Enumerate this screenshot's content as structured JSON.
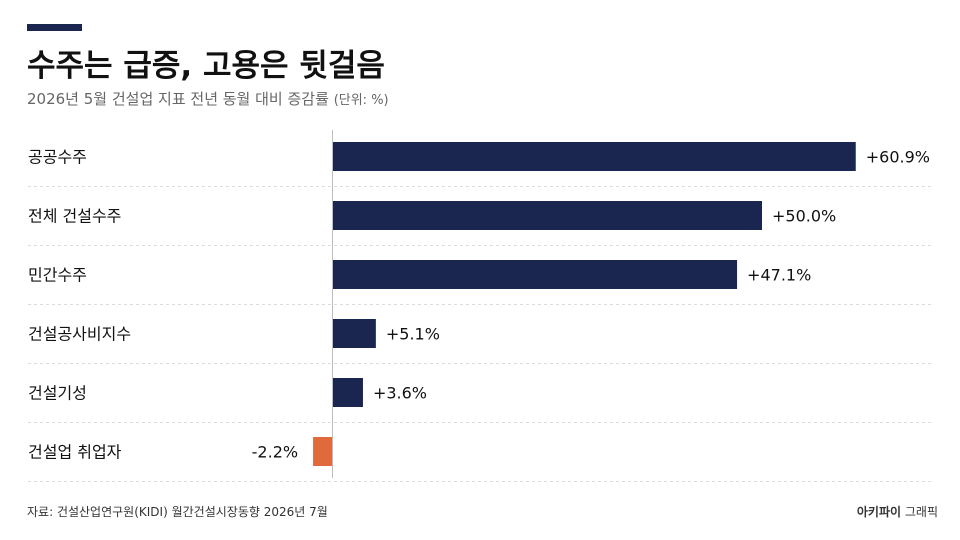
{
  "header": {
    "title": "수주는 급증, 고용은 뒷걸음",
    "subtitle": "2026년 5월 건설업 지표 전년 동월 대비 증감률",
    "unit": "(단위: %)"
  },
  "footer": {
    "source": "자료:  건설산업연구원(KIDI) 월간건설시장동향 2026년 7월",
    "brand_bold": "아키파이",
    "brand_rest": "그래픽"
  },
  "colors": {
    "positive": "#1a2550",
    "negative": "#e06a3b",
    "accent": "#1a2550",
    "grid": "#dcdcdc",
    "axis": "#bdbdbd"
  },
  "chart_data": {
    "type": "bar",
    "orientation": "horizontal",
    "title": "수주는 급증, 고용은 뒷걸음",
    "subtitle": "2026년 5월 건설업 지표 전년 동월 대비 증감률 (단위: %)",
    "categories": [
      "공공수주",
      "전체 건설수주",
      "민간수주",
      "건설공사비지수",
      "건설기성",
      "건설업 취업자"
    ],
    "values": [
      60.9,
      50.0,
      47.1,
      5.1,
      3.6,
      -2.2
    ],
    "value_labels": [
      "+60.9%",
      "+50.0%",
      "+47.1%",
      "+5.1%",
      "+3.6%",
      "-2.2%"
    ],
    "xlim": [
      -3,
      61
    ],
    "grid": false,
    "legend": "none"
  }
}
